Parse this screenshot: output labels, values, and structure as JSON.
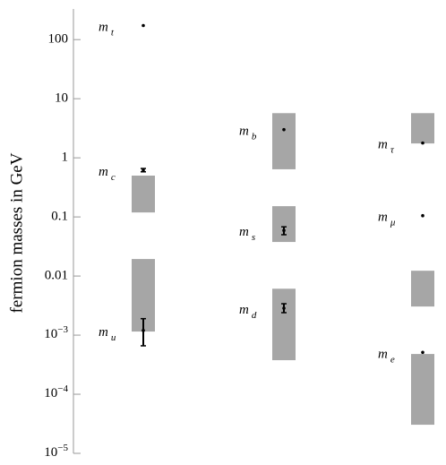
{
  "chart_data": {
    "type": "range-dot",
    "ylabel": "fermion masses in GeV",
    "log_y": true,
    "ylim": [
      1e-05,
      330
    ],
    "yticks": [
      100,
      10,
      1,
      0.1,
      0.01,
      {
        "value": 0.001,
        "label": "10",
        "exponent": "−3"
      },
      {
        "value": 0.0001,
        "label": "10",
        "exponent": "−4"
      },
      {
        "value": 1e-05,
        "label": "10",
        "exponent": "−5"
      }
    ],
    "range_color": "#a6a6a6",
    "point_color": "#000000",
    "groups": [
      {
        "points": [
          {
            "symbol": "m",
            "subscript": "t",
            "value": 173
          },
          {
            "symbol": "m",
            "subscript": "c",
            "value": 0.62,
            "error_low": 0.58,
            "error_high": 0.66
          },
          {
            "symbol": "m",
            "subscript": "u",
            "value": 0.0012,
            "error_low": 0.00066,
            "error_high": 0.0019
          }
        ],
        "ranges": [
          [
            0.119,
            0.5
          ],
          [
            0.00115,
            0.0194
          ]
        ]
      },
      {
        "points": [
          {
            "symbol": "m",
            "subscript": "b",
            "value": 3.0
          },
          {
            "symbol": "m",
            "subscript": "s",
            "value": 0.059,
            "error_low": 0.05,
            "error_high": 0.068
          },
          {
            "symbol": "m",
            "subscript": "d",
            "value": 0.00285,
            "error_low": 0.0024,
            "error_high": 0.0034
          }
        ],
        "ranges": [
          [
            0.64,
            5.7
          ],
          [
            0.0377,
            0.152
          ],
          [
            0.000377,
            0.0061
          ]
        ]
      },
      {
        "points": [
          {
            "symbol": "m",
            "subscript": "τ",
            "value": 1.78
          },
          {
            "symbol": "m",
            "subscript": "μ",
            "value": 0.105
          },
          {
            "symbol": "m",
            "subscript": "e",
            "value": 0.000511
          }
        ],
        "ranges": [
          [
            1.75,
            5.7
          ],
          [
            0.00305,
            0.0123
          ],
          [
            3.05e-05,
            0.00048
          ]
        ]
      }
    ]
  }
}
